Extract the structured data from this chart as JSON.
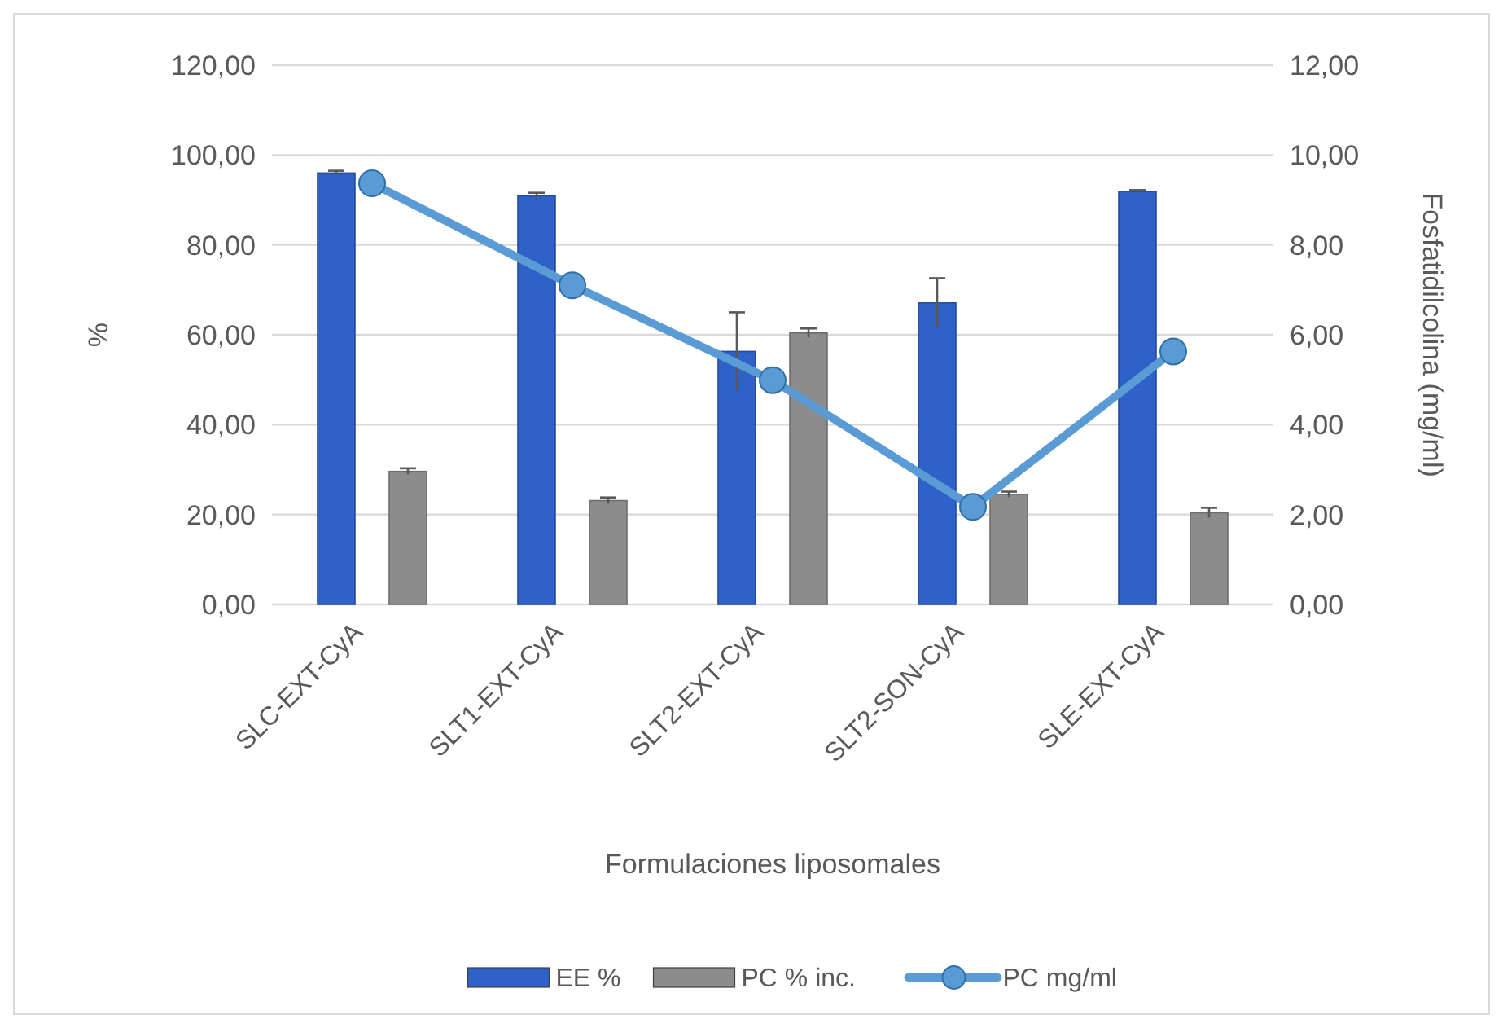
{
  "chart_data": {
    "type": "bar",
    "xlabel": "Formulaciones liposomales",
    "ylabel": "%",
    "y2label": "Fosfatidilcolina (mg/ml)",
    "categories": [
      "SLC-EXT-CyA",
      "SLT1-EXT-CyA",
      "SLT2-EXT-CyA",
      "SLT2-SON-CyA",
      "SLE-EXT-CyA"
    ],
    "series": [
      {
        "name": "EE %",
        "color": "#2e62c8",
        "values": [
          96.0,
          90.9,
          56.3,
          67.1,
          91.9
        ],
        "errors": [
          0.5,
          0.7,
          8.7,
          5.5,
          0.3
        ]
      },
      {
        "name": "PC % inc.",
        "color": "#8c8c8c",
        "values": [
          29.6,
          23.1,
          60.4,
          24.5,
          20.4
        ],
        "errors": [
          0.7,
          0.7,
          1.0,
          0.6,
          1.1
        ]
      },
      {
        "name": "PC mg/ml",
        "type": "line",
        "axis": "y2",
        "color": "#5b9bd5",
        "values": [
          9.37,
          7.1,
          4.99,
          2.17,
          5.63
        ]
      }
    ],
    "ylim": [
      0,
      120
    ],
    "yticks": [
      {
        "value": 0,
        "label": "0,00"
      },
      {
        "value": 20,
        "label": "20,00"
      },
      {
        "value": 40,
        "label": "40,00"
      },
      {
        "value": 60,
        "label": "60,00"
      },
      {
        "value": 80,
        "label": "80,00"
      },
      {
        "value": 100,
        "label": "100,00"
      },
      {
        "value": 120,
        "label": "120,00"
      }
    ],
    "y2lim": [
      0,
      12
    ],
    "y2ticks": [
      {
        "value": 0,
        "label": "0,00"
      },
      {
        "value": 2,
        "label": "2,00"
      },
      {
        "value": 4,
        "label": "4,00"
      },
      {
        "value": 6,
        "label": "6,00"
      },
      {
        "value": 8,
        "label": "8,00"
      },
      {
        "value": 10,
        "label": "10,00"
      },
      {
        "value": 12,
        "label": "12,00"
      }
    ],
    "grid": "y",
    "legend": "bottom",
    "marker": "circle"
  }
}
